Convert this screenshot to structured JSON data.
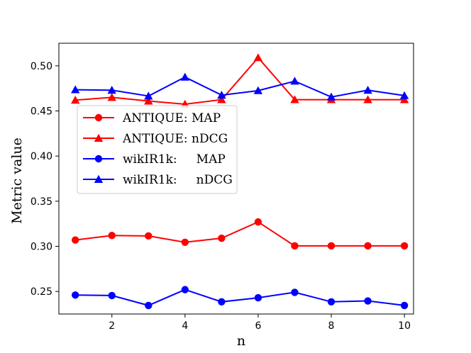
{
  "chart_data": {
    "type": "line",
    "title": "",
    "xlabel": "n",
    "ylabel": "Metric value",
    "x": [
      1,
      2,
      3,
      4,
      5,
      6,
      7,
      8,
      9,
      10
    ],
    "xlim": [
      0.55,
      10.25
    ],
    "ylim": [
      0.225,
      0.525
    ],
    "xticks": [
      2,
      4,
      6,
      8,
      10
    ],
    "xtick_labels": [
      "2",
      "4",
      "6",
      "8",
      "10"
    ],
    "yticks": [
      0.25,
      0.3,
      0.35,
      0.4,
      0.45,
      0.5
    ],
    "ytick_labels": [
      "0.25",
      "0.30",
      "0.35",
      "0.40",
      "0.45",
      "0.50"
    ],
    "grid": false,
    "legend_position": "center-left",
    "series": [
      {
        "name": "ANTIQUE: MAP",
        "color": "#ff0000",
        "marker": "circle",
        "values": [
          0.307,
          0.312,
          0.3115,
          0.3045,
          0.309,
          0.327,
          0.3005,
          0.3005,
          0.3005,
          0.3005
        ]
      },
      {
        "name": "ANTIQUE: nDCG",
        "color": "#ff0000",
        "marker": "triangle",
        "values": [
          0.462,
          0.465,
          0.461,
          0.4575,
          0.4625,
          0.509,
          0.4625,
          0.4625,
          0.4625,
          0.4625
        ]
      },
      {
        "name": "wikIR1k:     MAP",
        "color": "#0000ff",
        "marker": "circle",
        "values": [
          0.246,
          0.2455,
          0.2345,
          0.252,
          0.2385,
          0.243,
          0.249,
          0.2385,
          0.2395,
          0.2345
        ]
      },
      {
        "name": "wikIR1k:     nDCG",
        "color": "#0000ff",
        "marker": "triangle",
        "values": [
          0.4735,
          0.473,
          0.4665,
          0.4875,
          0.4675,
          0.4725,
          0.483,
          0.4655,
          0.473,
          0.467
        ]
      }
    ]
  }
}
